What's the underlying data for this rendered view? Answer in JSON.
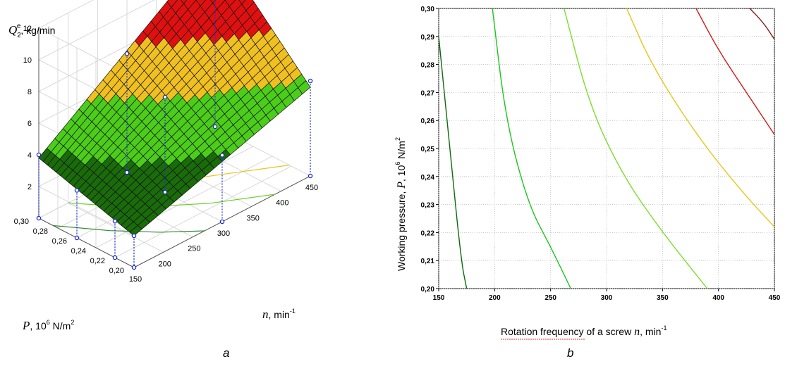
{
  "chart_data": [
    {
      "type": "surface3d",
      "panel_letter": "a",
      "z_axis_label": {
        "symbol": "Q",
        "sub": "2",
        "sup": "e",
        "unit": ", kg/min"
      },
      "x_axis_label": {
        "symbol": "n",
        "unit": ",  min",
        "unit_sup": "-1"
      },
      "y_axis_label": {
        "symbol": "P",
        "unit": ",  10",
        "unit_sup": "6",
        "unit_rest": " N/m",
        "unit_rest_sup": "2"
      },
      "z_ticks": [
        "12",
        "10",
        "8",
        "6",
        "4",
        "2"
      ],
      "p_ticks": [
        "0,30",
        "0,28",
        "0,26",
        "0,24",
        "0,22",
        "0,20"
      ],
      "n_ticks": [
        "150",
        "200",
        "250",
        "300",
        "350",
        "400",
        "450"
      ],
      "xlim": [
        150,
        450
      ],
      "ylim": [
        0.2,
        0.3
      ],
      "zlim": [
        0,
        12
      ],
      "color_bands": [
        {
          "from": 0,
          "to": 4,
          "color": "#1a6b0a"
        },
        {
          "from": 4,
          "to": 6,
          "color": "#4ccd1a"
        },
        {
          "from": 6,
          "to": 8,
          "color": "#f0c020"
        },
        {
          "from": 8,
          "to": 10,
          "color": "#e01010"
        },
        {
          "from": 10,
          "to": 12,
          "color": "#7a0808"
        }
      ],
      "points": [
        {
          "n": 150,
          "p": 0.2,
          "q": 2.0
        },
        {
          "n": 150,
          "p": 0.3,
          "q": 4.0
        },
        {
          "n": 450,
          "p": 0.3,
          "q": 11.0
        },
        {
          "n": 450,
          "p": 0.2,
          "q": 6.0
        },
        {
          "n": 150,
          "p": 0.26,
          "q": 3.0
        },
        {
          "n": 150,
          "p": 0.22,
          "q": 2.3
        },
        {
          "n": 300,
          "p": 0.2,
          "q": 4.2
        },
        {
          "n": 300,
          "p": 0.3,
          "q": 7.5
        },
        {
          "n": 300,
          "p": 0.26,
          "q": 6.0
        }
      ]
    },
    {
      "type": "contour",
      "panel_letter": "b",
      "x_axis_label": {
        "text": "Rotation frequency of a screw ",
        "symbol": "n",
        "unit": ", min",
        "unit_sup": "-1"
      },
      "y_axis_label": {
        "text": "Working pressure, ",
        "symbol": "P",
        "unit": ",  10",
        "unit_sup": "6",
        "unit_rest": " N/m",
        "unit_rest_sup": "2"
      },
      "x_ticks": [
        "150",
        "200",
        "250",
        "300",
        "350",
        "400",
        "450"
      ],
      "y_ticks": [
        "0,30",
        "0,29",
        "0,28",
        "0,27",
        "0,26",
        "0,25",
        "0,24",
        "0,23",
        "0,22",
        "0,21",
        "0,20"
      ],
      "xlim": [
        150,
        450
      ],
      "ylim": [
        0.2,
        0.3
      ],
      "grid": true,
      "contours": [
        {
          "color": "#0d6a0d",
          "points": [
            [
              150,
              0.29
            ],
            [
              160,
              0.25
            ],
            [
              170,
              0.21
            ],
            [
              175,
              0.2
            ]
          ]
        },
        {
          "color": "#1cc51c",
          "points": [
            [
              198,
              0.3
            ],
            [
              210,
              0.26
            ],
            [
              230,
              0.23
            ],
            [
              250,
              0.215
            ],
            [
              268,
              0.2
            ]
          ]
        },
        {
          "color": "#7ddc2a",
          "points": [
            [
              262,
              0.3
            ],
            [
              285,
              0.265
            ],
            [
              315,
              0.24
            ],
            [
              350,
              0.22
            ],
            [
              390,
              0.2
            ]
          ]
        },
        {
          "color": "#e8c51a",
          "points": [
            [
              318,
              0.3
            ],
            [
              340,
              0.28
            ],
            [
              380,
              0.255
            ],
            [
              420,
              0.235
            ],
            [
              450,
              0.222
            ]
          ]
        },
        {
          "color": "#d01818",
          "points": [
            [
              380,
              0.3
            ],
            [
              400,
              0.285
            ],
            [
              425,
              0.27
            ],
            [
              450,
              0.255
            ]
          ]
        },
        {
          "color": "#8a1515",
          "points": [
            [
              428,
              0.3
            ],
            [
              440,
              0.295
            ],
            [
              450,
              0.289
            ]
          ]
        }
      ]
    }
  ]
}
